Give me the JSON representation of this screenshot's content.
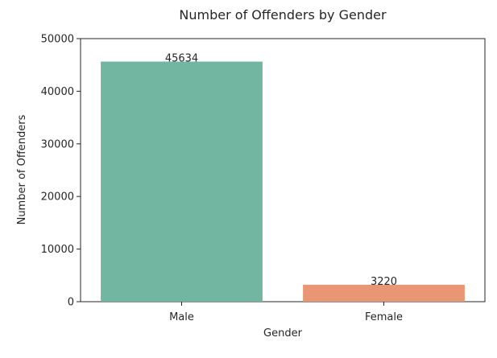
{
  "chart_data": {
    "type": "bar",
    "title": "Number of Offenders by Gender",
    "xlabel": "Gender",
    "ylabel": "Number of Offenders",
    "categories": [
      "Male",
      "Female"
    ],
    "values": [
      45634,
      3220
    ],
    "data_labels": [
      "45634",
      "3220"
    ],
    "ylim": [
      0,
      50000
    ],
    "yticks": [
      0,
      10000,
      20000,
      30000,
      40000,
      50000
    ],
    "ytick_labels": [
      "0",
      "10000",
      "20000",
      "30000",
      "40000",
      "50000"
    ],
    "colors": [
      "#72b6a1",
      "#e99675"
    ],
    "grid": false,
    "legend": "none"
  }
}
